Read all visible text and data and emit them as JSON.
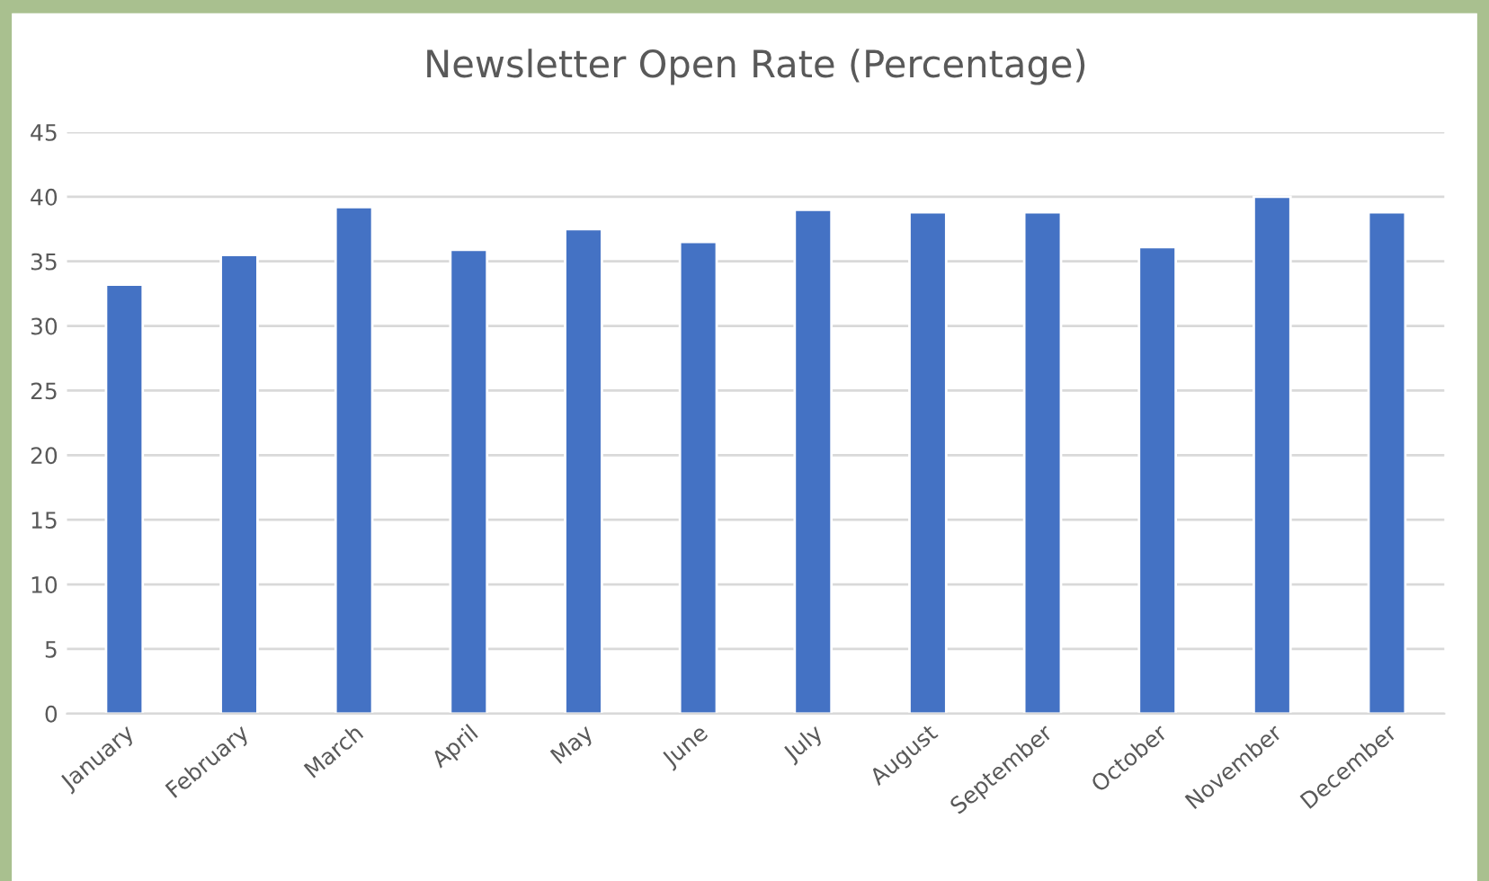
{
  "chart_data": {
    "type": "bar",
    "title": "Newsletter Open Rate (Percentage)",
    "categories": [
      "January",
      "February",
      "March",
      "April",
      "May",
      "June",
      "July",
      "August",
      "September",
      "October",
      "November",
      "December"
    ],
    "values": [
      33.2,
      35.5,
      39.2,
      35.9,
      37.5,
      36.5,
      39.0,
      38.8,
      38.8,
      36.1,
      40.0,
      38.8
    ],
    "color": "#4472c4",
    "ylim": [
      0,
      45
    ],
    "yticks": [
      0,
      5,
      10,
      15,
      20,
      25,
      30,
      35,
      40,
      45
    ],
    "grid": "y"
  }
}
